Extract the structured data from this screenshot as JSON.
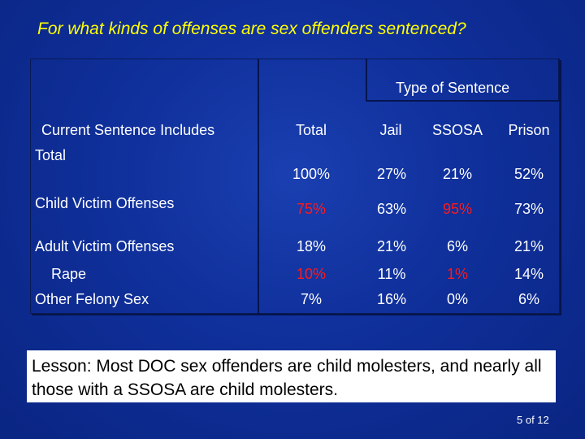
{
  "title": "For what kinds of offenses are sex offenders sentenced?",
  "table": {
    "group_header": "Type of Sentence",
    "row_header_label": "Current Sentence Includes",
    "columns": [
      "Total",
      "Jail",
      "SSOSA",
      "Prison"
    ],
    "rows": [
      {
        "label": "Total",
        "values": [
          "100%",
          "27%",
          "21%",
          "52%"
        ]
      },
      {
        "label": "Child Victim Offenses",
        "values": [
          "75%",
          "63%",
          "95%",
          "73%"
        ]
      },
      {
        "label": "Adult Victim Offenses",
        "values": [
          "18%",
          "21%",
          "6%",
          "21%"
        ]
      },
      {
        "label": "Rape",
        "values": [
          "10%",
          "11%",
          "1%",
          "14%"
        ]
      },
      {
        "label": "Other Felony Sex",
        "values": [
          "7%",
          "16%",
          "0%",
          "6%"
        ]
      }
    ],
    "highlight_color": "#ff1a1a"
  },
  "lesson": "Lesson:  Most DOC sex offenders are child molesters, and nearly all those with a SSOSA are child molesters.",
  "page_number": "5 of 12",
  "colors": {
    "background": "#0f2f9a",
    "title": "#ffff00",
    "text": "#ffffff"
  }
}
